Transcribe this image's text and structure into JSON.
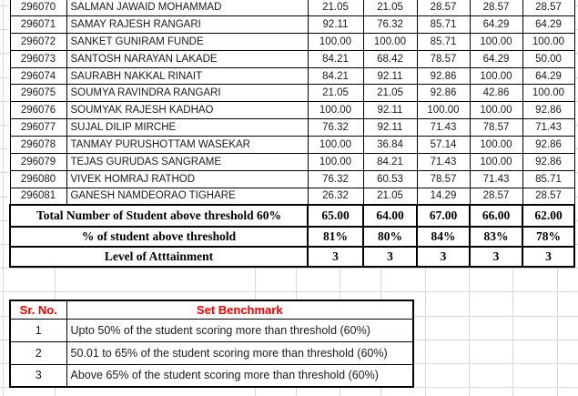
{
  "students": {
    "rows": [
      {
        "id": "296070",
        "name": "SALMAN JAWAID MOHAMMAD",
        "scores": [
          "21.05",
          "21.05",
          "28.57",
          "28.57",
          "28.57"
        ]
      },
      {
        "id": "296071",
        "name": "SAMAY RAJESH RANGARI",
        "scores": [
          "92.11",
          "76.32",
          "85.71",
          "64.29",
          "64.29"
        ]
      },
      {
        "id": "296072",
        "name": "SANKET GUNIRAM FUNDE",
        "scores": [
          "100.00",
          "100.00",
          "85.71",
          "100.00",
          "100.00"
        ]
      },
      {
        "id": "296073",
        "name": "SANTOSH NARAYAN LAKADE",
        "scores": [
          "84.21",
          "68.42",
          "78.57",
          "64.29",
          "50.00"
        ]
      },
      {
        "id": "296074",
        "name": "SAURABH NAKKAL RINAIT",
        "scores": [
          "84.21",
          "92.11",
          "92.86",
          "100.00",
          "64.29"
        ]
      },
      {
        "id": "296075",
        "name": "SOUMYA RAVINDRA RANGARI",
        "scores": [
          "21.05",
          "21.05",
          "92.86",
          "42.86",
          "100.00"
        ]
      },
      {
        "id": "296076",
        "name": "SOUMYAK RAJESH KADHAO",
        "scores": [
          "100.00",
          "92.11",
          "100.00",
          "100.00",
          "92.86"
        ]
      },
      {
        "id": "296077",
        "name": "SUJAL DILIP MIRCHE",
        "scores": [
          "76.32",
          "92.11",
          "71.43",
          "78.57",
          "71.43"
        ]
      },
      {
        "id": "296078",
        "name": "TANMAY PURUSHOTTAM WASEKAR",
        "scores": [
          "100.00",
          "36.84",
          "57.14",
          "100.00",
          "92.86"
        ]
      },
      {
        "id": "296079",
        "name": "TEJAS GURUDAS SANGRAME",
        "scores": [
          "100.00",
          "84.21",
          "71.43",
          "100.00",
          "92.86"
        ]
      },
      {
        "id": "296080",
        "name": "VIVEK HOMRAJ RATHOD",
        "scores": [
          "76.32",
          "60.53",
          "78.57",
          "71.43",
          "85.71"
        ]
      },
      {
        "id": "296081",
        "name": "GANESH NAMDEORAO TIGHARE",
        "scores": [
          "26.32",
          "21.05",
          "14.29",
          "28.57",
          "28.57"
        ]
      }
    ]
  },
  "summary": {
    "total_label": "Total Number of Student above threshold 60%",
    "total_values": [
      "65.00",
      "64.00",
      "67.00",
      "66.00",
      "62.00"
    ],
    "percent_label": "% of student above threshold",
    "percent_values": [
      "81%",
      "80%",
      "84%",
      "83%",
      "78%"
    ],
    "level_label": "Level of Atttainment",
    "level_values": [
      "3",
      "3",
      "3",
      "3",
      "3"
    ]
  },
  "benchmark": {
    "sr_header": "Sr. No.",
    "set_header": "Set Benchmark",
    "rows": [
      {
        "sr": "1",
        "desc": "Upto 50% of the student scoring more than threshold (60%)"
      },
      {
        "sr": "2",
        "desc": "50.01 to 65% of the student scoring more than threshold (60%)"
      },
      {
        "sr": "3",
        "desc": "Above 65% of the student  scoring more than threshold (60%)"
      }
    ]
  },
  "colors": {
    "accent_red": "#ee0000",
    "grid_line": "#d8d8d8",
    "table_border": "#000000"
  }
}
